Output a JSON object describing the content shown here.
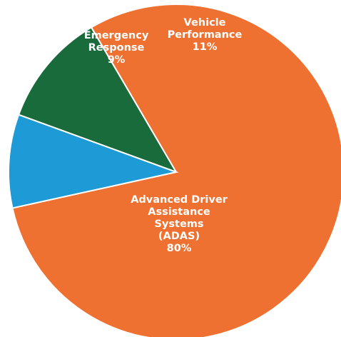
{
  "chart_data": {
    "type": "pie",
    "title": "",
    "start_angle_deg": -70,
    "direction": "clockwise",
    "slices": [
      {
        "label": "Vehicle Performance",
        "value": 11,
        "value_label": "11%",
        "label_lines": [
          "Vehicle",
          "Performance",
          "11%"
        ],
        "color": "#1a6b3c"
      },
      {
        "label": "Advanced Driver Assistance Systems (ADAS)",
        "value": 80,
        "value_label": "80%",
        "label_lines": [
          "Advanced Driver",
          "Assistance",
          "Systems",
          "(ADAS)",
          "80%"
        ],
        "color": "#ee7131"
      },
      {
        "label": "Emergency Response",
        "value": 9,
        "value_label": "9%",
        "label_lines": [
          "Emergency",
          "Response",
          "9%"
        ],
        "color": "#1e9ad6"
      }
    ]
  }
}
